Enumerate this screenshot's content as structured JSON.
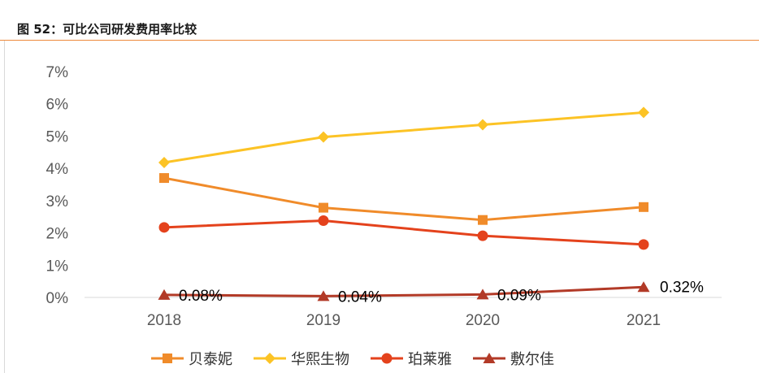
{
  "figure": {
    "title": "图 52：可比公司研发费用率比较"
  },
  "chart_data": {
    "type": "line",
    "title": "图 52：可比公司研发费用率比较",
    "categories": [
      "2018",
      "2019",
      "2020",
      "2021"
    ],
    "y_ticks": [
      "7%",
      "6%",
      "5%",
      "4%",
      "3%",
      "2%",
      "1%",
      "0%"
    ],
    "ylim": [
      0,
      7
    ],
    "grid": false,
    "legend_position": "bottom",
    "series": [
      {
        "name": "贝泰妮",
        "color": "#f08b2a",
        "marker": "square",
        "values": [
          3.7,
          2.78,
          2.4,
          2.8
        ]
      },
      {
        "name": "华熙生物",
        "color": "#fcc325",
        "marker": "diamond",
        "values": [
          4.18,
          4.97,
          5.35,
          5.73
        ]
      },
      {
        "name": "珀莱雅",
        "color": "#e4421c",
        "marker": "circle",
        "values": [
          2.17,
          2.38,
          1.91,
          1.64
        ]
      },
      {
        "name": "敷尔佳",
        "color": "#b23a27",
        "marker": "triangle",
        "values": [
          0.08,
          0.04,
          0.09,
          0.32
        ],
        "labels": [
          "0.08%",
          "0.04%",
          "0.09%",
          "0.32%"
        ]
      }
    ]
  }
}
